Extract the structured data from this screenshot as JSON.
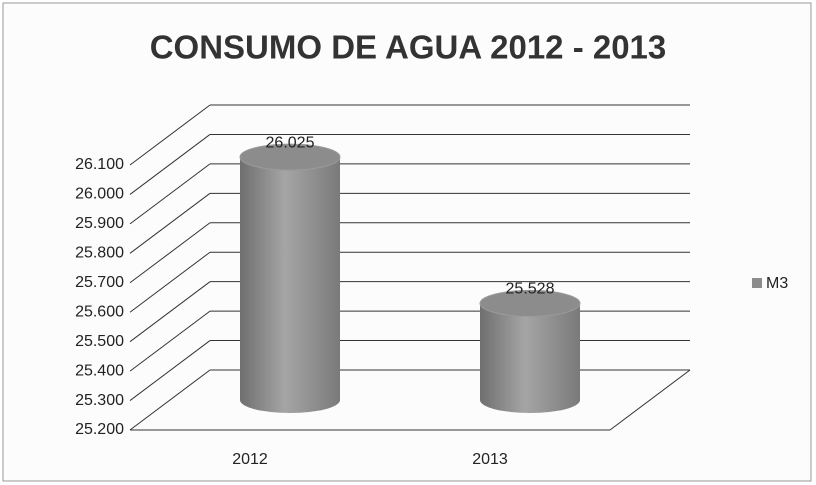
{
  "chart_data": {
    "type": "bar3d-cylinder",
    "title": "CONSUMO DE AGUA  2012 - 2013",
    "categories": [
      "2012",
      "2013"
    ],
    "series": [
      {
        "name": "M3",
        "color": "#8c8c8c",
        "values": [
          26025,
          25528
        ],
        "value_labels": [
          "26.025",
          "25.528"
        ]
      }
    ],
    "ylim": [
      25200,
      26100
    ],
    "yticks": [
      {
        "value": 25200,
        "label": "25.200"
      },
      {
        "value": 25300,
        "label": "25.300"
      },
      {
        "value": 25400,
        "label": "25.400"
      },
      {
        "value": 25500,
        "label": "25.500"
      },
      {
        "value": 25600,
        "label": "25.600"
      },
      {
        "value": 25700,
        "label": "25.700"
      },
      {
        "value": 25800,
        "label": "25.800"
      },
      {
        "value": 25900,
        "label": "25.900"
      },
      {
        "value": 26000,
        "label": "26.000"
      },
      {
        "value": 26100,
        "label": "26.100"
      }
    ],
    "grid": true,
    "legend": "right"
  }
}
